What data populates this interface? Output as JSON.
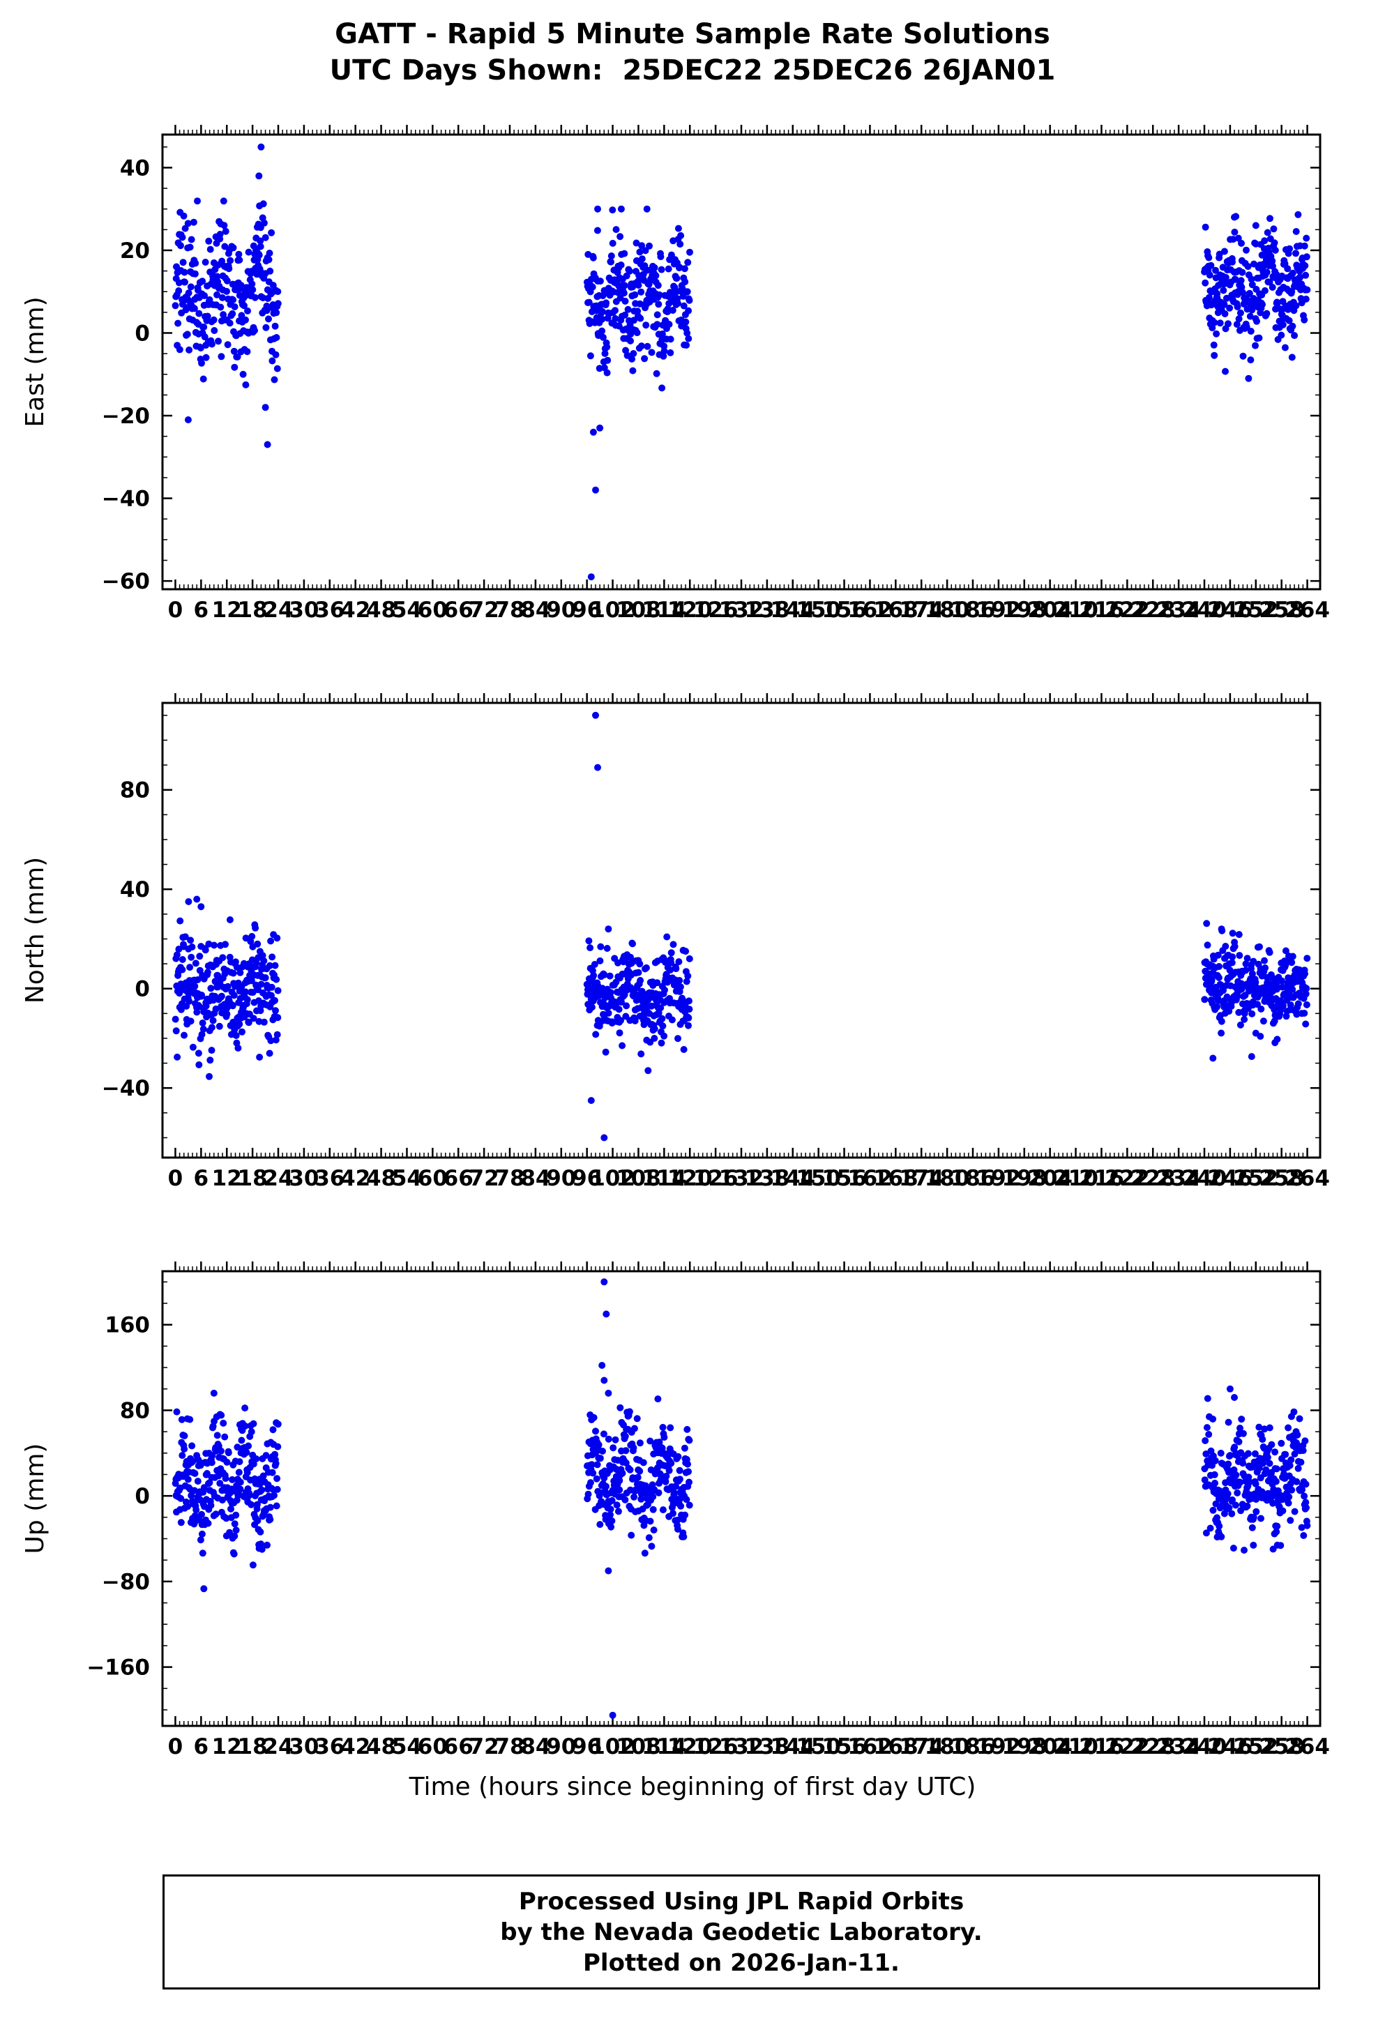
{
  "title": {
    "line1": "GATT - Rapid 5 Minute Sample Rate Solutions",
    "line2": "UTC Days Shown:  25DEC22 25DEC26 26JAN01"
  },
  "footer": {
    "line1": "Processed Using JPL Rapid Orbits",
    "line2": "by the Nevada Geodetic Laboratory.",
    "line3": "Plotted on 2026-Jan-11."
  },
  "chart_data": {
    "type": "scatter",
    "point_color": "#0000ee",
    "frame_color": "#000000",
    "grid": false,
    "x_axis": {
      "label": "Time (hours since beginning of first day UTC)",
      "min": -3,
      "max": 267,
      "minor_step": 1,
      "major_step": 6,
      "tick_labels": [
        0,
        6,
        12,
        18,
        24,
        30,
        36,
        42,
        48,
        54,
        60,
        66,
        72,
        78,
        84,
        90,
        96,
        102,
        108,
        114,
        120,
        126,
        132,
        138,
        144,
        150,
        156,
        162,
        168,
        174,
        180,
        186,
        192,
        198,
        204,
        210,
        216,
        222,
        228,
        234,
        240,
        246,
        252,
        258,
        264
      ]
    },
    "panels": [
      {
        "name": "east",
        "ylabel": "East (mm)",
        "ylim": [
          -62,
          48
        ],
        "yticks": [
          -60,
          -40,
          -20,
          0,
          20,
          40
        ],
        "y_minor": 5,
        "y_major": 20,
        "clusters": [
          {
            "x0": 0,
            "x1": 24,
            "n": 288,
            "mean": 10,
            "std": 8,
            "driftA": 5,
            "driftP": 9,
            "seed": 101
          },
          {
            "x0": 96,
            "x1": 120,
            "n": 288,
            "mean": 8,
            "std": 7,
            "driftA": 4,
            "driftP": 7,
            "seed": 102
          },
          {
            "x0": 240,
            "x1": 264,
            "n": 288,
            "mean": 11,
            "std": 6,
            "driftA": 4,
            "driftP": 8,
            "seed": 103
          }
        ],
        "outliers": [
          [
            20,
            45
          ],
          [
            19.5,
            38
          ],
          [
            3,
            -21
          ],
          [
            21,
            -18
          ],
          [
            21.5,
            -27
          ],
          [
            97,
            -59
          ],
          [
            98,
            -38
          ],
          [
            97.5,
            -24
          ],
          [
            99,
            -23
          ],
          [
            98.5,
            30
          ],
          [
            104,
            30
          ],
          [
            110,
            30
          ],
          [
            247,
            28
          ],
          [
            252,
            26
          ]
        ]
      },
      {
        "name": "north",
        "ylabel": "North (mm)",
        "ylim": [
          -68,
          115
        ],
        "yticks": [
          -40,
          0,
          40,
          80
        ],
        "y_minor": 10,
        "y_major": 40,
        "clusters": [
          {
            "x0": 0,
            "x1": 24,
            "n": 288,
            "mean": -2,
            "std": 11,
            "driftA": 4,
            "driftP": 8,
            "seed": 201
          },
          {
            "x0": 96,
            "x1": 120,
            "n": 288,
            "mean": -2,
            "std": 9,
            "driftA": 4,
            "driftP": 9,
            "seed": 202
          },
          {
            "x0": 240,
            "x1": 264,
            "n": 288,
            "mean": 0,
            "std": 8,
            "driftA": 4,
            "driftP": 7,
            "seed": 203
          }
        ],
        "outliers": [
          [
            98,
            110
          ],
          [
            98.5,
            89
          ],
          [
            97,
            -45
          ],
          [
            100,
            -60
          ],
          [
            5,
            36
          ],
          [
            6,
            33
          ],
          [
            242,
            -28
          ],
          [
            244,
            24
          ],
          [
            101,
            24
          ]
        ]
      },
      {
        "name": "up",
        "ylabel": "Up (mm)",
        "ylim": [
          -215,
          210
        ],
        "yticks": [
          -160,
          -80,
          0,
          80,
          160
        ],
        "y_minor": 20,
        "y_major": 80,
        "clusters": [
          {
            "x0": 0,
            "x1": 24,
            "n": 288,
            "mean": 12,
            "std": 26,
            "driftA": 22,
            "driftP": 7,
            "seed": 301
          },
          {
            "x0": 96,
            "x1": 120,
            "n": 288,
            "mean": 18,
            "std": 24,
            "driftA": 20,
            "driftP": 8,
            "seed": 302
          },
          {
            "x0": 240,
            "x1": 264,
            "n": 288,
            "mean": 15,
            "std": 25,
            "driftA": 20,
            "driftP": 7,
            "seed": 303
          }
        ],
        "outliers": [
          [
            100,
            200
          ],
          [
            100.5,
            170
          ],
          [
            99.5,
            122
          ],
          [
            100,
            108
          ],
          [
            101,
            96
          ],
          [
            101,
            -70
          ],
          [
            102,
            -205
          ],
          [
            9,
            96
          ],
          [
            246,
            100
          ],
          [
            247,
            92
          ]
        ]
      }
    ]
  }
}
